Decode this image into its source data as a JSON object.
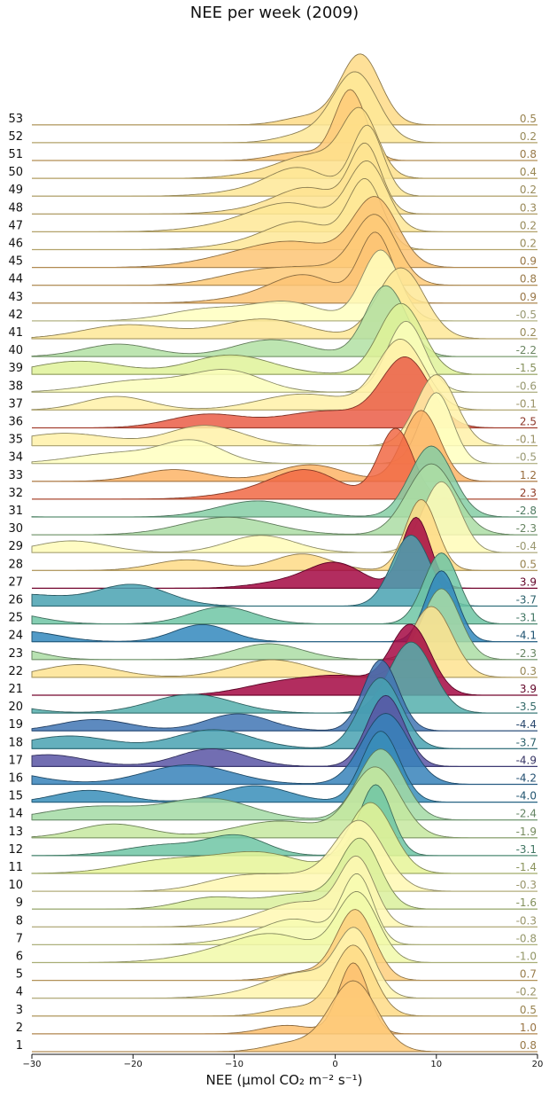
{
  "chart_data": {
    "type": "ridgeline",
    "title": "NEE per week (2009)",
    "xlabel": "NEE (µmol CO₂ m⁻² s⁻¹)",
    "xlim": [
      -30,
      20
    ],
    "xticks": [
      "−30",
      "−20",
      "−10",
      "0",
      "10",
      "20"
    ],
    "xtick_values": [
      -30,
      -20,
      -10,
      0,
      10,
      20
    ],
    "colormap": "Spectral",
    "colorscale_domain": [
      -5,
      4
    ],
    "weeks": [
      1,
      2,
      3,
      4,
      5,
      6,
      7,
      8,
      9,
      10,
      11,
      12,
      13,
      14,
      15,
      16,
      17,
      18,
      19,
      20,
      21,
      22,
      23,
      24,
      25,
      26,
      27,
      28,
      29,
      30,
      31,
      32,
      33,
      34,
      35,
      36,
      37,
      38,
      39,
      40,
      41,
      42,
      43,
      44,
      45,
      46,
      47,
      48,
      49,
      50,
      51,
      52,
      53
    ],
    "mean_labels": [
      "0.8",
      "1.0",
      "0.5",
      "-0.2",
      "0.7",
      "-1.0",
      "-0.8",
      "-0.3",
      "-1.6",
      "-0.3",
      "-1.4",
      "-3.1",
      "-1.9",
      "-2.4",
      "-4.0",
      "-4.2",
      "-4.9",
      "-3.7",
      "-4.4",
      "-3.5",
      "3.9",
      "0.3",
      "-2.3",
      "-4.1",
      "-3.1",
      "-3.7",
      "3.9",
      "0.5",
      "-0.4",
      "-2.3",
      "-2.8",
      "2.3",
      "1.2",
      "-0.5",
      "-0.1",
      "2.5",
      "-0.1",
      "-0.6",
      "-1.5",
      "-2.2",
      "0.2",
      "-0.5",
      "0.9",
      "0.8",
      "0.9",
      "0.2",
      "0.2",
      "0.3",
      "0.2",
      "0.4",
      "0.8",
      "0.2",
      "0.5"
    ],
    "mean_values": [
      0.8,
      1.0,
      0.5,
      -0.2,
      0.7,
      -1.0,
      -0.8,
      -0.3,
      -1.6,
      -0.3,
      -1.4,
      -3.1,
      -1.9,
      -2.4,
      -4.0,
      -4.2,
      -4.9,
      -3.7,
      -4.4,
      -3.5,
      3.9,
      0.3,
      -2.3,
      -4.1,
      -3.1,
      -3.7,
      3.9,
      0.5,
      -0.4,
      -2.3,
      -2.8,
      2.3,
      1.2,
      -0.5,
      -0.1,
      2.5,
      -0.1,
      -0.6,
      -1.5,
      -2.2,
      0.2,
      -0.5,
      0.9,
      0.8,
      0.9,
      0.2,
      0.2,
      0.3,
      0.2,
      0.4,
      0.8,
      0.2,
      0.5
    ],
    "peak_x": [
      1.8,
      1.8,
      1.8,
      2.0,
      2.0,
      2.2,
      2.2,
      2.2,
      2.5,
      2.5,
      3.5,
      4.0,
      4.0,
      4.5,
      4.5,
      5.0,
      5.0,
      4.5,
      4.5,
      7.5,
      7.5,
      9.5,
      10.5,
      10.5,
      10.5,
      7.5,
      8.0,
      8.5,
      10.5,
      9.5,
      9.5,
      6.0,
      8.5,
      10.0,
      10.0,
      7.0,
      6.5,
      7.0,
      6.5,
      5.0,
      6.5,
      4.5,
      4.0,
      4.0,
      4.0,
      3.0,
      3.2,
      3.0,
      3.2,
      2.5,
      1.5,
      2.0,
      2.5
    ]
  }
}
